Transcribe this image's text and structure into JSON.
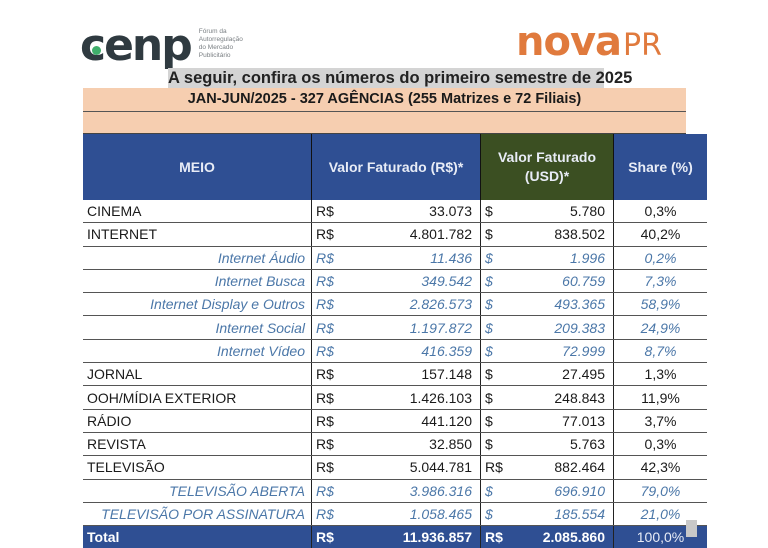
{
  "logos": {
    "cenp": {
      "word": "cenp",
      "tagline": [
        "Fórum da",
        "Autorregulação",
        "do Mercado",
        "Publicitário"
      ],
      "dot_color": "#3fae6b",
      "text_color": "#2f3a40"
    },
    "novapr": {
      "nova": "nova",
      "pr": "PR",
      "color": "#e07a3d"
    }
  },
  "headline": "A seguir, confira os números do primeiro semestre de 2025",
  "subtitle": "JAN-JUN/2025 - 327 AGÊNCIAS (255 Matrizes e 72 Filiais)",
  "colors": {
    "header_blue": "#2f4f93",
    "header_green": "#3b4f22",
    "peach": "#f6ceb0",
    "sub_text": "#4b77a8"
  },
  "table": {
    "headers": {
      "meio": "MEIO",
      "brl": "Valor Faturado (R$)*",
      "usd_line1": "Valor Faturado",
      "usd_line2": "(USD)*",
      "share": "Share (%)"
    },
    "rows": [
      {
        "meio": "CINEMA",
        "cur": "R$",
        "brl": "33.073",
        "cur2": "$",
        "usd": "5.780",
        "share": "0,3%",
        "sub": false
      },
      {
        "meio": "INTERNET",
        "cur": "R$",
        "brl": "4.801.782",
        "cur2": "$",
        "usd": "838.502",
        "share": "40,2%",
        "sub": false
      },
      {
        "meio": "Internet Áudio",
        "cur": "R$",
        "brl": "11.436",
        "cur2": "$",
        "usd": "1.996",
        "share": "0,2%",
        "sub": true
      },
      {
        "meio": "Internet Busca",
        "cur": "R$",
        "brl": "349.542",
        "cur2": "$",
        "usd": "60.759",
        "share": "7,3%",
        "sub": true
      },
      {
        "meio": "Internet Display e Outros",
        "cur": "R$",
        "brl": "2.826.573",
        "cur2": "$",
        "usd": "493.365",
        "share": "58,9%",
        "sub": true
      },
      {
        "meio": "Internet Social",
        "cur": "R$",
        "brl": "1.197.872",
        "cur2": "$",
        "usd": "209.383",
        "share": "24,9%",
        "sub": true
      },
      {
        "meio": "Internet Vídeo",
        "cur": "R$",
        "brl": "416.359",
        "cur2": "$",
        "usd": "72.999",
        "share": "8,7%",
        "sub": true
      },
      {
        "meio": "JORNAL",
        "cur": "R$",
        "brl": "157.148",
        "cur2": "$",
        "usd": "27.495",
        "share": "1,3%",
        "sub": false
      },
      {
        "meio": "OOH/MÍDIA EXTERIOR",
        "cur": "R$",
        "brl": "1.426.103",
        "cur2": "$",
        "usd": "248.843",
        "share": "11,9%",
        "sub": false
      },
      {
        "meio": "RÁDIO",
        "cur": "R$",
        "brl": "441.120",
        "cur2": "$",
        "usd": "77.013",
        "share": "3,7%",
        "sub": false
      },
      {
        "meio": "REVISTA",
        "cur": "R$",
        "brl": "32.850",
        "cur2": "$",
        "usd": "5.763",
        "share": "0,3%",
        "sub": false
      },
      {
        "meio": "TELEVISÃO",
        "cur": "R$",
        "brl": "5.044.781",
        "cur2": "R$",
        "usd": "882.464",
        "share": "42,3%",
        "sub": false
      },
      {
        "meio": "TELEVISÃO ABERTA",
        "cur": "R$",
        "brl": "3.986.316",
        "cur2": "$",
        "usd": "696.910",
        "share": "79,0%",
        "sub": true
      },
      {
        "meio": "TELEVISÃO POR ASSINATURA",
        "cur": "R$",
        "brl": "1.058.465",
        "cur2": "$",
        "usd": "185.554",
        "share": "21,0%",
        "sub": true
      }
    ],
    "total": {
      "meio": "Total",
      "cur": "R$",
      "brl": "11.936.857",
      "cur2": "R$",
      "usd": "2.085.860",
      "share": "100,0%"
    }
  }
}
